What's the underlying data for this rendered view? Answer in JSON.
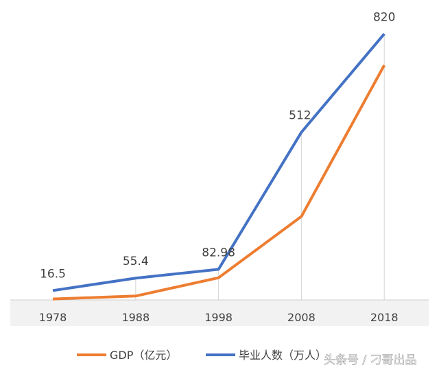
{
  "chart_data": {
    "type": "line",
    "categories": [
      "1978",
      "1988",
      "1998",
      "2008",
      "2018"
    ],
    "series": [
      {
        "name": "GDP（亿元）",
        "color": "#ED7D31",
        "axis": "secondary",
        "values": [
          3700,
          15000,
          85000,
          320000,
          900000
        ],
        "data_labels": false
      },
      {
        "name": "毕业人数（万人）",
        "color": "#4472C4",
        "axis": "primary",
        "values": [
          16.5,
          55.4,
          82.98,
          512,
          820
        ],
        "data_labels": true
      }
    ],
    "data_labels": [
      "16.5",
      "55.4",
      "82.98",
      "512",
      "820"
    ],
    "legend": "bottom",
    "grid": false,
    "drop_lines": true,
    "title": "",
    "xlabel": "",
    "ylabel": ""
  },
  "watermark": "头条号 / 刁哥出品"
}
